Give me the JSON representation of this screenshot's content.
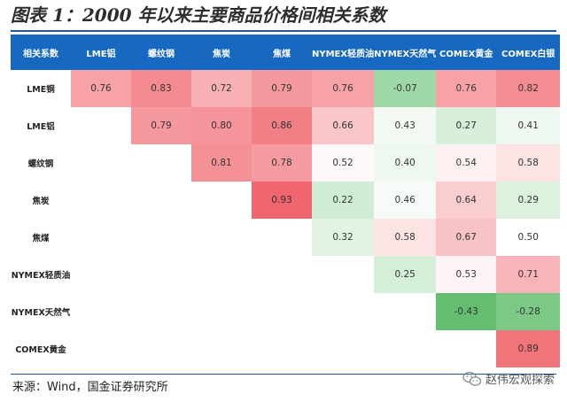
{
  "figure": {
    "title": "图表 1：2000 年以来主要商品价格间相关系数",
    "source": "来源：Wind，国金证券研究所",
    "watermark": "赵伟宏观探索",
    "watermark_icon": "wechat-icon"
  },
  "chart_data": {
    "type": "heatmap",
    "corner_label": "相关系数",
    "columns": [
      "LME铝",
      "螺纹钢",
      "焦炭",
      "焦煤",
      "NYMEX轻质油",
      "NYMEX天然气",
      "COMEX黄金",
      "COMEX白银"
    ],
    "rows": [
      {
        "label": "LME铜",
        "values": [
          0.76,
          0.83,
          0.72,
          0.79,
          0.76,
          -0.07,
          0.76,
          0.82
        ]
      },
      {
        "label": "LME铝",
        "values": [
          null,
          0.79,
          0.8,
          0.86,
          0.66,
          0.43,
          0.27,
          0.41
        ]
      },
      {
        "label": "螺纹钢",
        "values": [
          null,
          null,
          0.81,
          0.78,
          0.52,
          0.4,
          0.54,
          0.58
        ]
      },
      {
        "label": "焦炭",
        "values": [
          null,
          null,
          null,
          0.93,
          0.22,
          0.46,
          0.64,
          0.29
        ]
      },
      {
        "label": "焦煤",
        "values": [
          null,
          null,
          null,
          null,
          0.32,
          0.58,
          0.67,
          0.5
        ]
      },
      {
        "label": "NYMEX轻质油",
        "values": [
          null,
          null,
          null,
          null,
          null,
          0.25,
          0.53,
          0.71
        ]
      },
      {
        "label": "NYMEX天然气",
        "values": [
          null,
          null,
          null,
          null,
          null,
          null,
          -0.43,
          -0.28
        ]
      },
      {
        "label": "COMEX黄金",
        "values": [
          null,
          null,
          null,
          null,
          null,
          null,
          null,
          0.89
        ]
      }
    ],
    "value_format": "2 decimals",
    "color_scale": {
      "high": "#f0666e",
      "neutral": "#ffffff",
      "low": "#63bf6f"
    }
  }
}
